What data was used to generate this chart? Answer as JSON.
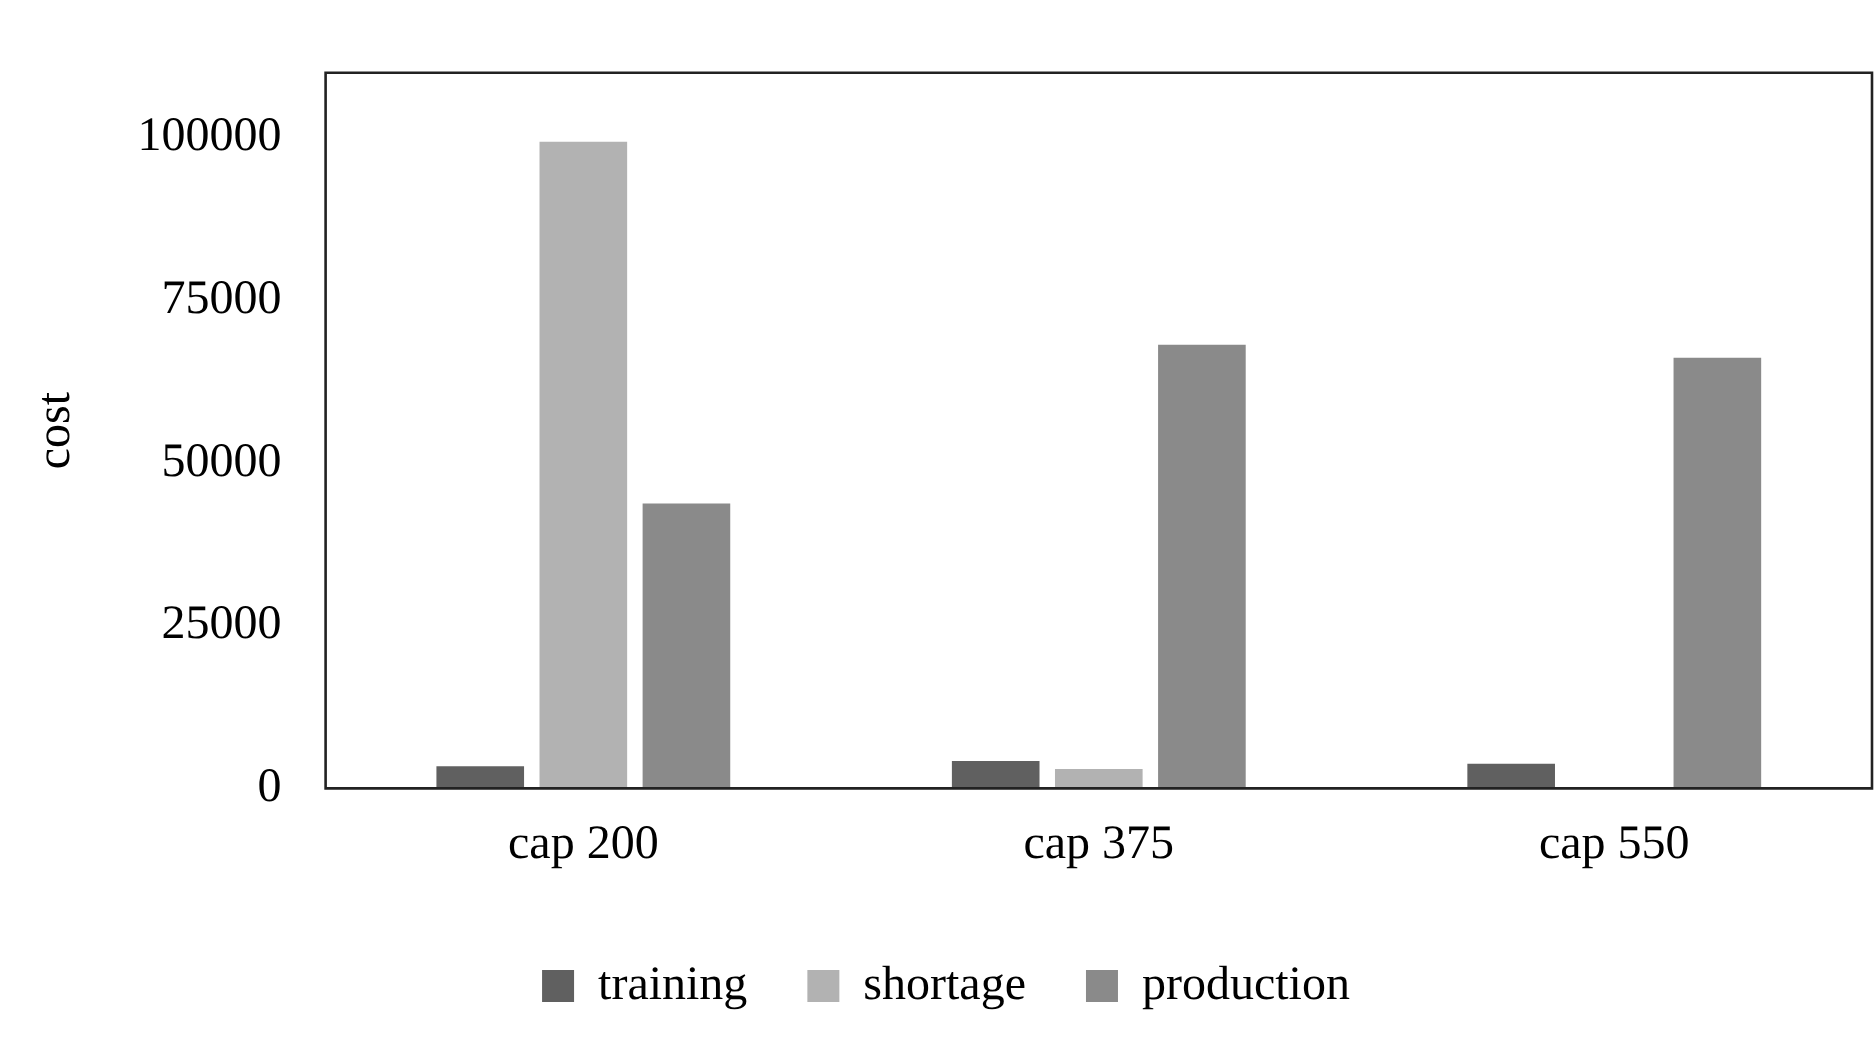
{
  "chart_data": {
    "type": "bar",
    "ylabel": "cost",
    "categories": [
      "cap 200",
      "cap 375",
      "cap 550"
    ],
    "series": [
      {
        "name": "training",
        "color": "#606060",
        "values": [
          3400,
          4200,
          3800
        ]
      },
      {
        "name": "shortage",
        "color": "#b2b2b2",
        "values": [
          99400,
          3000,
          0
        ]
      },
      {
        "name": "production",
        "color": "#8a8a8a",
        "values": [
          43800,
          68200,
          66200
        ]
      }
    ],
    "ylim": [
      0,
      110000
    ],
    "yticks": [
      0,
      25000,
      50000,
      75000,
      100000
    ],
    "grid": false,
    "legend": "bottom"
  }
}
